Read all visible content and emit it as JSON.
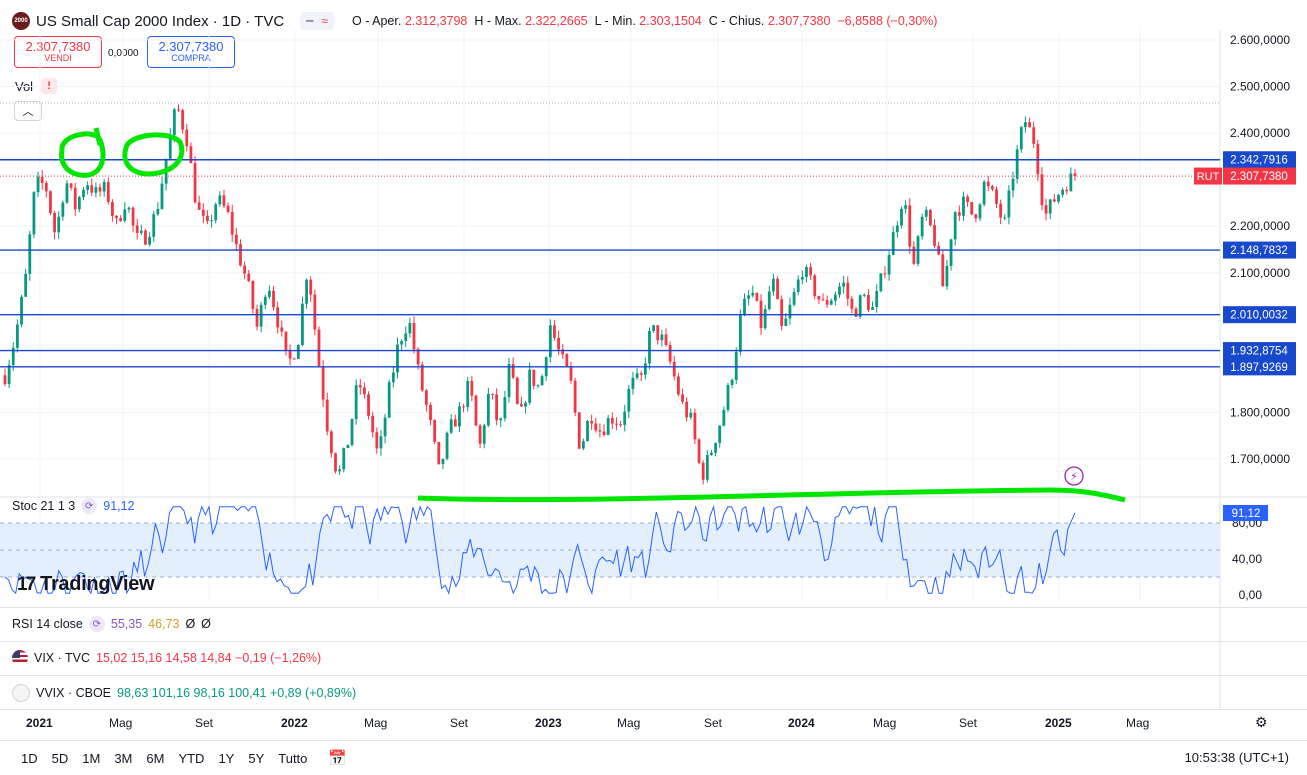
{
  "header": {
    "logo_text": "2000",
    "title": "US Small Cap 2000 Index · 1D · TVC",
    "pill_icons": [
      "minus-icon",
      "wave-icon"
    ],
    "ohlc": [
      {
        "label": "O - Aper.",
        "value": "2.312,3798"
      },
      {
        "label": "H - Max.",
        "value": "2.322,2665"
      },
      {
        "label": "L - Min.",
        "value": "2.303,1504"
      },
      {
        "label": "C - Chius.",
        "value": "2.307,7380"
      },
      {
        "label": "",
        "value": "−6,8588 (−0,30%)"
      }
    ]
  },
  "trade": {
    "sell_price": "2.307,7380",
    "sell_label": "VENDI",
    "spread": "0,0000",
    "buy_price": "2.307,7380",
    "buy_label": "COMPRA"
  },
  "vol": {
    "label": "Vol",
    "warn": "!"
  },
  "price_axis": {
    "ticks": [
      "2.600,0000",
      "2.500,0000",
      "2.400,0000",
      "2.200,0000",
      "2.100,0000",
      "1.800,0000",
      "1.700,0000"
    ],
    "tick_values": [
      2600,
      2500,
      2400,
      2200,
      2100,
      1800,
      1700
    ],
    "levels": [
      {
        "label": "2.342,7916",
        "value": 2342.79
      },
      {
        "label": "2.148,7832",
        "value": 2148.78
      },
      {
        "label": "2.010,0032",
        "value": 2010.0
      },
      {
        "label": "1.932,8754",
        "value": 1932.88
      },
      {
        "label": "1.897,9269",
        "value": 1897.93
      }
    ],
    "current": {
      "symbol": "RUT",
      "label": "2.307,7380",
      "value": 2307.738
    },
    "color_level": "#1848cc",
    "color_current": "#f23645"
  },
  "stoch": {
    "label": "Stoc 21 1 3",
    "value": "91,12",
    "ticks": [
      "80,00",
      "40,00",
      "0,00"
    ],
    "tick_values": [
      80,
      40,
      0
    ],
    "current_label": "91,12",
    "current_value": 91.12,
    "color": "#2962ff"
  },
  "rsi": {
    "label": "RSI 14 close",
    "v1": "55,35",
    "v2": "46,73",
    "v3": "Ø",
    "v4": "Ø"
  },
  "vix": {
    "label": "VIX · TVC",
    "values": "15,02  15,16  14,58  14,84  −0,19 (−1,26%)"
  },
  "vvix": {
    "label": "VVIX · CBOE",
    "values": "98,63  101,16  98,16  100,41  +0,89 (+0,89%)"
  },
  "time_axis": [
    "2021",
    "Mag",
    "Set",
    "2022",
    "Mag",
    "Set",
    "2023",
    "Mag",
    "Set",
    "2024",
    "Mag",
    "Set",
    "2025",
    "Mag"
  ],
  "brand": {
    "name": "TradingView"
  },
  "bottom": {
    "timeframes": [
      "1D",
      "5D",
      "1M",
      "3M",
      "6M",
      "YTD",
      "1Y",
      "5Y",
      "Tutto"
    ],
    "clock": "10:53:38 (UTC+1)"
  },
  "chart_data": {
    "type": "candlestick",
    "title": "US Small Cap 2000 Index · 1D · TVC",
    "x_range": [
      "2021-01",
      "2025-01"
    ],
    "ylim": [
      1620,
      2640
    ],
    "grid": true,
    "series": [
      {
        "values": [
          1880,
          1960,
          2080,
          2290,
          2290,
          2180,
          2300,
          2240,
          2300,
          2270,
          2280,
          2200,
          2260,
          2170,
          2180,
          2230,
          2350,
          2460,
          2390,
          2240,
          2190,
          2260,
          2230,
          2150,
          2080,
          1980,
          2090,
          2000,
          1900,
          1950,
          2120,
          1920,
          1760,
          1660,
          1740,
          1870,
          1800,
          1700,
          1840,
          1950,
          2000,
          1880,
          1790,
          1670,
          1760,
          1800,
          1860,
          1720,
          1850,
          1760,
          1900,
          1780,
          1880,
          1850,
          1990,
          1920,
          1870,
          1720,
          1800,
          1760,
          1790,
          1780,
          1860,
          1870,
          1980,
          1960,
          1900,
          1820,
          1780,
          1660,
          1720,
          1790,
          1880,
          2020,
          2060,
          1980,
          2090,
          1970,
          2040,
          2110,
          2070,
          2030,
          2050,
          2080,
          2010,
          2050,
          2020,
          2100,
          2180,
          2270,
          2110,
          2230,
          2180,
          2060,
          2230,
          2250,
          2220,
          2290,
          2260,
          2200,
          2330,
          2430,
          2380,
          2220,
          2260,
          2290,
          2310
        ]
      }
    ],
    "annotations": [
      "green circles at 2021 highs",
      "green support line under stochastic peaks"
    ]
  }
}
